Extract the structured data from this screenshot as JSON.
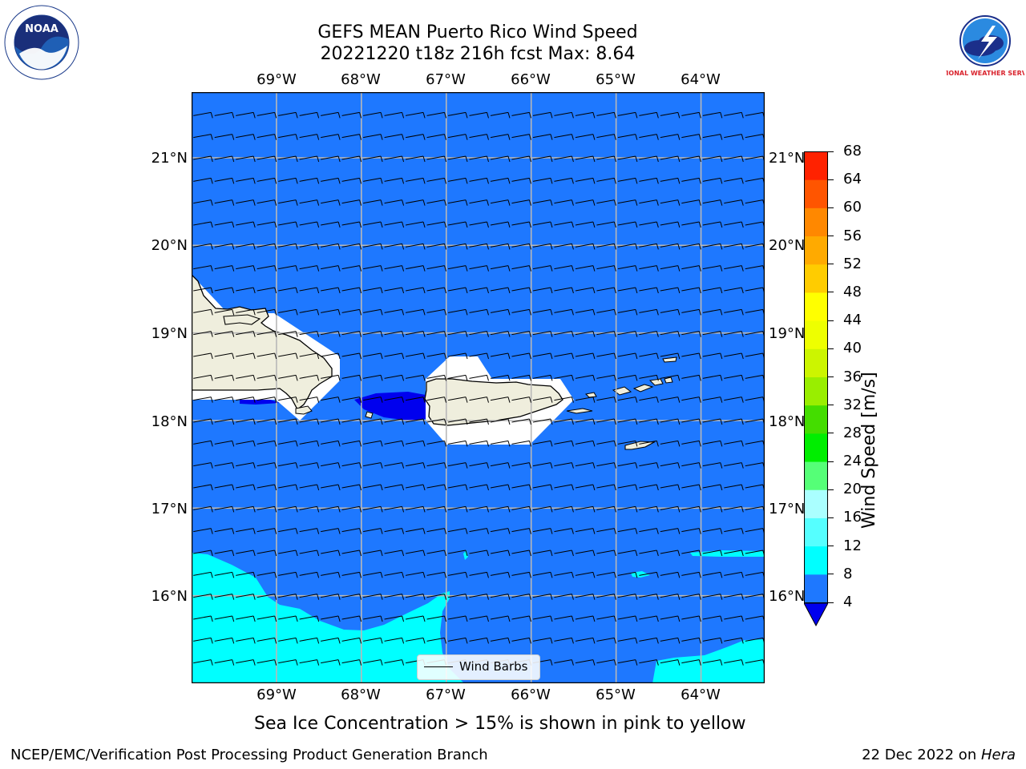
{
  "header": {
    "title_line1": "GEFS MEAN Puerto Rico Wind Speed",
    "title_line2": "20221220 t18z 216h fcst   Max: 8.64"
  },
  "logos": {
    "noaa_text": "NOAA",
    "nws_text": "NATIONAL WEATHER SERVICE"
  },
  "map": {
    "lon_labels": [
      "69°W",
      "68°W",
      "67°W",
      "66°W",
      "65°W",
      "64°W"
    ],
    "lat_labels": [
      "21°N",
      "20°N",
      "19°N",
      "18°N",
      "17°N",
      "16°N"
    ],
    "lon_range": [
      -70.0,
      -63.25
    ],
    "lat_range": [
      15.0,
      21.75
    ],
    "barb_spacing_deg": 0.5,
    "legend_label": "Wind Barbs",
    "colors": {
      "below_4": "#0000ee",
      "band_4_8": "#1e78ff",
      "band_8_12": "#00ffff",
      "land": "#efeedd",
      "mask": "#ffffff",
      "grid": "#b8b8b8"
    }
  },
  "colorbar": {
    "label": "Wind Speed [m/s]",
    "ticks": [
      "68",
      "64",
      "60",
      "56",
      "52",
      "48",
      "44",
      "40",
      "36",
      "32",
      "28",
      "24",
      "20",
      "16",
      "12",
      "8",
      "4"
    ],
    "levels": [
      4,
      8,
      12,
      16,
      20,
      24,
      28,
      32,
      36,
      40,
      44,
      48,
      52,
      56,
      60,
      64,
      68
    ],
    "colors": [
      "#1e78ff",
      "#00ffff",
      "#55ffff",
      "#aaffff",
      "#55ff77",
      "#00ee00",
      "#44dd00",
      "#99ee00",
      "#ccf500",
      "#eeff00",
      "#ffff00",
      "#ffcc00",
      "#ffaa00",
      "#ff8800",
      "#ff5500",
      "#ff2200"
    ],
    "extend_min_color": "#0000ee"
  },
  "notes": {
    "sea_ice": "Sea Ice Concentration > 15% is shown in pink to yellow"
  },
  "footer": {
    "left": "NCEP/EMC/Verification Post Processing Product Generation Branch",
    "date": "22 Dec 2022 on ",
    "machine": "Hera"
  }
}
